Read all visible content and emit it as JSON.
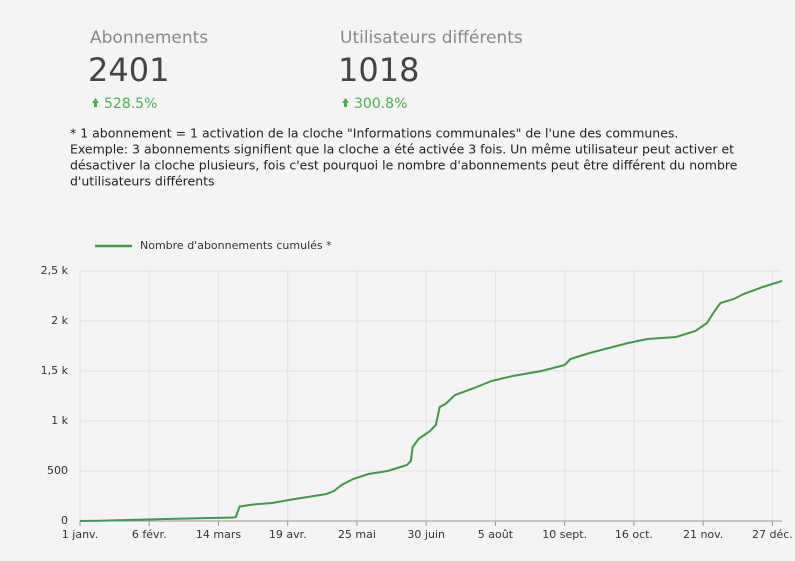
{
  "kpis": [
    {
      "label": "Abonnements",
      "value": "2401",
      "change": "528.5%"
    },
    {
      "label": "Utilisateurs différents",
      "value": "1018",
      "change": "300.8%"
    }
  ],
  "note": [
    "* 1 abonnement = 1 activation de la cloche \"Informations communales\" de l'une des communes.",
    "Exemple: 3 abonnements signifient que la cloche a été activée 3 fois. Un même utilisateur peut activer et",
    "désactiver la cloche plusieurs, fois c'est pourquoi le nombre d'abonnements peut être différent du nombre",
    "d'utilisateurs différents"
  ],
  "chart_data": {
    "type": "line",
    "x": [
      0,
      10,
      30,
      50,
      80,
      81,
      83,
      90,
      100,
      110,
      120,
      128,
      132,
      136,
      142,
      150,
      160,
      170,
      172,
      173,
      176,
      182,
      185,
      187,
      190,
      195,
      205,
      214,
      225,
      240,
      252,
      255,
      265,
      275,
      285,
      295,
      310,
      320,
      326,
      330,
      333,
      340,
      345,
      355,
      365
    ],
    "series": [
      {
        "name": "Nombre d'abonnements cumulés *",
        "color": "#3f9a47",
        "values": [
          0,
          3,
          12,
          22,
          35,
          40,
          145,
          165,
          180,
          215,
          245,
          270,
          300,
          360,
          420,
          470,
          500,
          560,
          600,
          740,
          820,
          900,
          960,
          1140,
          1170,
          1260,
          1330,
          1400,
          1450,
          1500,
          1560,
          1620,
          1680,
          1730,
          1780,
          1820,
          1840,
          1900,
          1980,
          2100,
          2180,
          2220,
          2270,
          2340,
          2401
        ]
      }
    ],
    "xlim": [
      0,
      365
    ],
    "xticks": [
      {
        "value": 0,
        "label": "1 janv."
      },
      {
        "value": 36,
        "label": "6 févr."
      },
      {
        "value": 72,
        "label": "14 mars"
      },
      {
        "value": 108,
        "label": "19 avr."
      },
      {
        "value": 144,
        "label": "25 mai"
      },
      {
        "value": 180,
        "label": "30 juin"
      },
      {
        "value": 216,
        "label": "5 août"
      },
      {
        "value": 252,
        "label": "10 sept."
      },
      {
        "value": 288,
        "label": "16 oct."
      },
      {
        "value": 324,
        "label": "21 nov."
      },
      {
        "value": 360,
        "label": "27 déc."
      }
    ],
    "ylim": [
      0,
      2500
    ],
    "yticks": [
      0,
      500,
      {
        "value": 1000,
        "label": "1 k"
      },
      {
        "value": 1500,
        "label": "1,5 k"
      },
      {
        "value": 2000,
        "label": "2 k"
      },
      {
        "value": 2500,
        "label": "2,5 k"
      }
    ],
    "grid": true,
    "legend": "top-left"
  }
}
